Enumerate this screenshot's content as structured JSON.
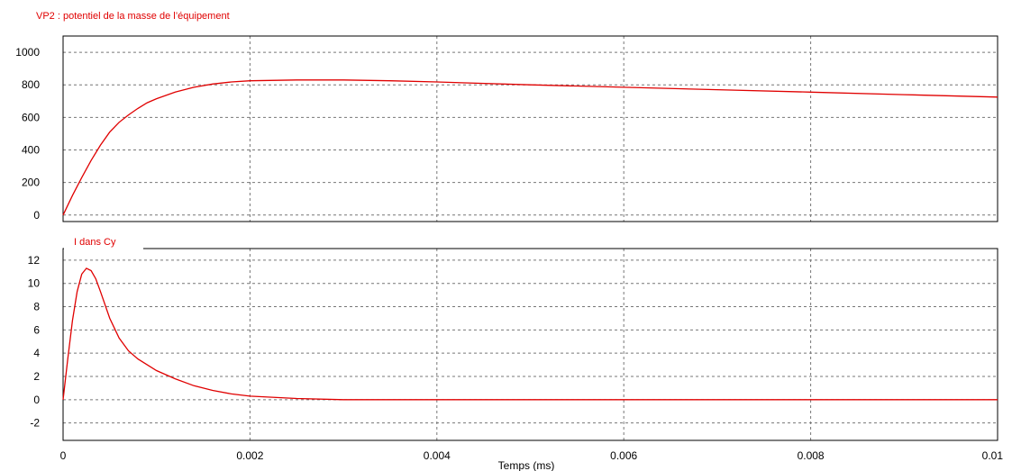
{
  "chart_data": [
    {
      "type": "line",
      "title": "VP2 : potentiel de la masse de l’équipement",
      "ylim": [
        -40,
        1100
      ],
      "xlim": [
        0,
        0.01
      ],
      "grid": true,
      "yticks": [
        "0",
        "200",
        "400",
        "600",
        "800",
        "1000"
      ],
      "series": [
        {
          "color": "#e00000",
          "x": [
            0,
            0.0001,
            0.0002,
            0.0003,
            0.0004,
            0.0005,
            0.0006,
            0.0007,
            0.0008,
            0.0009,
            0.001,
            0.0012,
            0.0014,
            0.0016,
            0.0018,
            0.002,
            0.0025,
            0.003,
            0.0035,
            0.004,
            0.005,
            0.006,
            0.007,
            0.008,
            0.009,
            0.01
          ],
          "y": [
            0,
            120,
            230,
            335,
            430,
            510,
            570,
            615,
            655,
            690,
            715,
            755,
            785,
            805,
            818,
            825,
            830,
            830,
            825,
            818,
            800,
            785,
            770,
            755,
            740,
            725
          ]
        }
      ]
    },
    {
      "type": "line",
      "title": "I dans Cy",
      "ylim": [
        -3.5,
        13
      ],
      "xlim": [
        0,
        0.01
      ],
      "grid": true,
      "xlabel": "Temps (ms)",
      "yticks": [
        "-2",
        "0",
        "2",
        "4",
        "6",
        "8",
        "10",
        "12"
      ],
      "xticks": [
        "0",
        "0.002",
        "0.004",
        "0.006",
        "0.008",
        "0.01"
      ],
      "series": [
        {
          "color": "#e00000",
          "x": [
            0,
            5e-05,
            0.0001,
            0.00015,
            0.0002,
            0.00025,
            0.0003,
            0.00035,
            0.0004,
            0.0005,
            0.0006,
            0.0007,
            0.0008,
            0.001,
            0.0012,
            0.0014,
            0.0016,
            0.0018,
            0.002,
            0.0025,
            0.003,
            0.0035,
            0.004,
            0.005,
            0.006,
            0.007,
            0.008,
            0.009,
            0.01
          ],
          "y": [
            0,
            3.5,
            6.8,
            9.3,
            10.8,
            11.3,
            11.1,
            10.4,
            9.3,
            7.0,
            5.3,
            4.2,
            3.5,
            2.5,
            1.8,
            1.2,
            0.8,
            0.5,
            0.3,
            0.1,
            0,
            0,
            0,
            0,
            0,
            0,
            0,
            0,
            0
          ]
        }
      ]
    }
  ]
}
